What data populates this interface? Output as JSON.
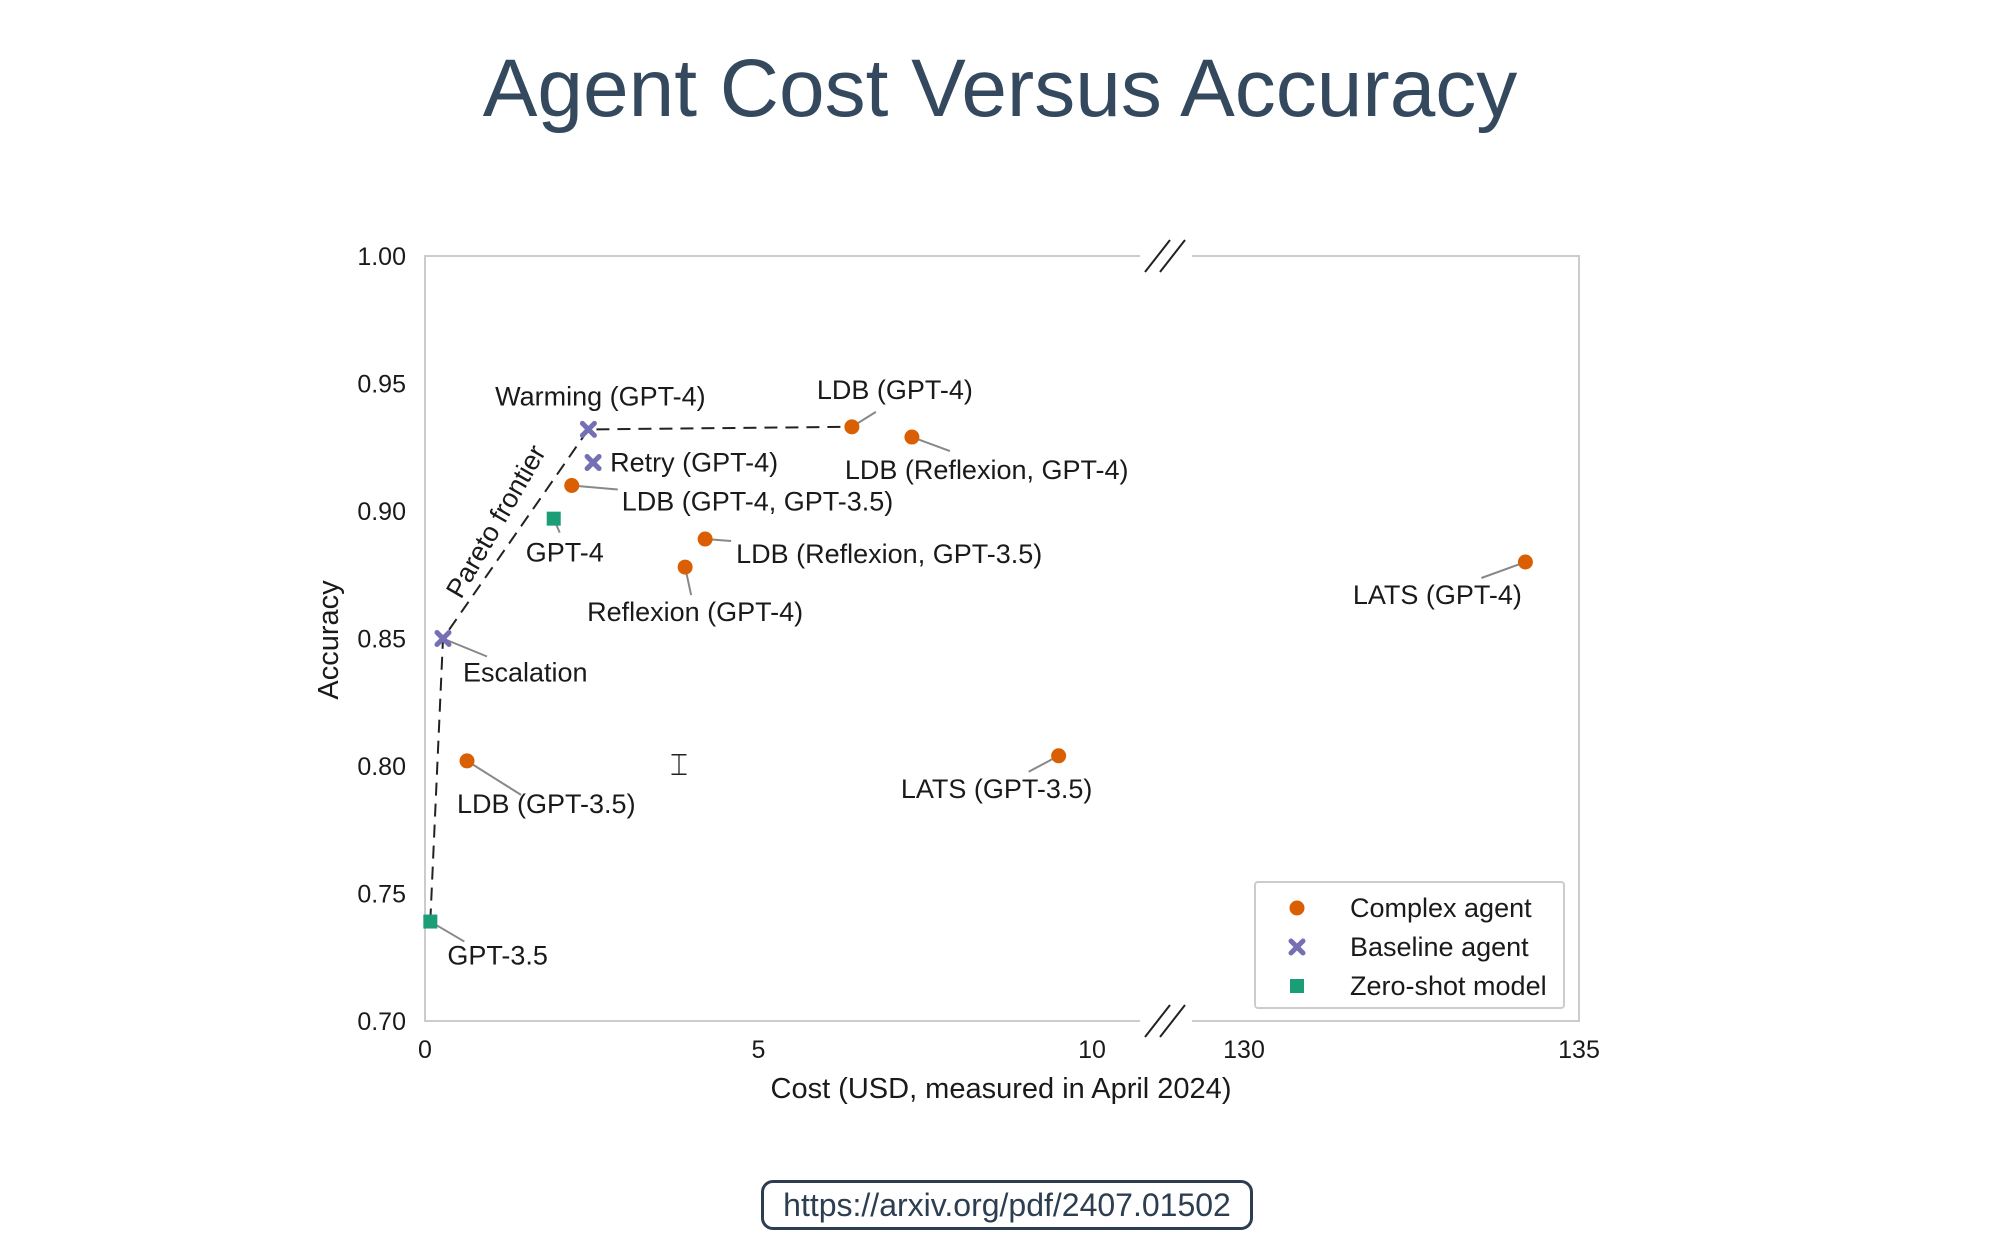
{
  "title": "Agent Cost Versus Accuracy",
  "source_url": "https://arxiv.org/pdf/2407.01502",
  "chart_data": {
    "type": "scatter",
    "title": "Agent Cost Versus Accuracy",
    "xlabel": "Cost (USD, measured in April 2024)",
    "ylabel": "Accuracy",
    "x_broken_axis": true,
    "x_segments": [
      [
        0,
        11
      ],
      [
        130,
        135
      ]
    ],
    "x_ticks": [
      0,
      5,
      10,
      130,
      135
    ],
    "ylim": [
      0.7,
      1.0
    ],
    "y_ticks": [
      "0.70",
      "0.75",
      "0.80",
      "0.85",
      "0.90",
      "0.95",
      "1.00"
    ],
    "grid": false,
    "legend_position": "bottom-right",
    "series": [
      {
        "name": "Complex agent",
        "marker": "circle",
        "color": "#d95f02",
        "points": [
          {
            "label": "LDB (GPT-4)",
            "x": 6.4,
            "y": 0.933
          },
          {
            "label": "LDB (Reflexion, GPT-4)",
            "x": 7.3,
            "y": 0.929
          },
          {
            "label": "LDB (GPT-4, GPT-3.5)",
            "x": 2.2,
            "y": 0.91
          },
          {
            "label": "LDB (Reflexion, GPT-3.5)",
            "x": 4.2,
            "y": 0.889
          },
          {
            "label": "Reflexion (GPT-4)",
            "x": 3.9,
            "y": 0.878
          },
          {
            "label": "LDB (GPT-3.5)",
            "x": 0.63,
            "y": 0.802
          },
          {
            "label": "LATS (GPT-3.5)",
            "x": 9.5,
            "y": 0.804
          },
          {
            "label": "LATS (GPT-4)",
            "x": 134.2,
            "y": 0.88
          }
        ]
      },
      {
        "name": "Baseline agent",
        "marker": "x",
        "color": "#7570b3",
        "points": [
          {
            "label": "Warming (GPT-4)",
            "x": 2.45,
            "y": 0.932
          },
          {
            "label": "Retry (GPT-4)",
            "x": 2.52,
            "y": 0.919
          },
          {
            "label": "Escalation",
            "x": 0.27,
            "y": 0.85
          }
        ]
      },
      {
        "name": "Zero-shot model",
        "marker": "square",
        "color": "#1b9e77",
        "points": [
          {
            "label": "GPT-4",
            "x": 1.93,
            "y": 0.897
          },
          {
            "label": "GPT-3.5",
            "x": 0.08,
            "y": 0.739
          }
        ]
      }
    ],
    "annotations": [
      {
        "text": "Pareto frontier",
        "type": "dashed-line",
        "path": [
          [
            0.08,
            0.739
          ],
          [
            0.27,
            0.85
          ],
          [
            2.45,
            0.932
          ],
          [
            6.4,
            0.933
          ]
        ]
      }
    ]
  }
}
